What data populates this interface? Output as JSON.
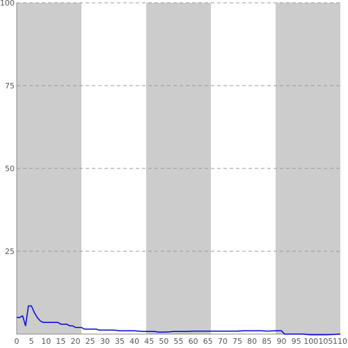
{
  "chart_data": {
    "type": "line",
    "title": "",
    "xlabel": "",
    "ylabel": "",
    "xlim": [
      0,
      110
    ],
    "ylim": [
      0,
      100
    ],
    "x_ticks": [
      0,
      5,
      10,
      15,
      20,
      25,
      30,
      35,
      40,
      45,
      50,
      55,
      60,
      65,
      70,
      75,
      80,
      85,
      90,
      95,
      100,
      105,
      110
    ],
    "y_ticks": [
      25,
      50,
      75,
      100
    ],
    "grid": "horizontal-dashed",
    "shaded_bands": [
      [
        0,
        22
      ],
      [
        44,
        66
      ],
      [
        88,
        110
      ]
    ],
    "colors": {
      "line": "#0000dd",
      "band": "#cccccc",
      "grid": "#999999",
      "axis": "#888888"
    },
    "series": [
      {
        "x": [
          0,
          1,
          2,
          3,
          4,
          5,
          6,
          7,
          8,
          9,
          10,
          12,
          14,
          15,
          16,
          17,
          18,
          19,
          20,
          21,
          22,
          23,
          25,
          27,
          28,
          30,
          33,
          35,
          38,
          40,
          43,
          45,
          47,
          48,
          50,
          52,
          53,
          55,
          58,
          60,
          62,
          65,
          67,
          70,
          72,
          75,
          77,
          78,
          80,
          83,
          85,
          88,
          90,
          91,
          93,
          95,
          97,
          100,
          103,
          105,
          108,
          110
        ],
        "y": [
          5,
          5,
          5.5,
          2.5,
          8.5,
          8.5,
          6.5,
          5,
          4,
          3.5,
          3.5,
          3.5,
          3.5,
          3,
          3,
          3,
          2.5,
          2.5,
          2,
          2,
          2,
          1.5,
          1.5,
          1.5,
          1.2,
          1.2,
          1.2,
          1,
          1,
          1,
          0.8,
          0.8,
          0.8,
          0.6,
          0.6,
          0.7,
          0.8,
          0.8,
          0.8,
          0.9,
          0.9,
          0.9,
          0.9,
          0.9,
          0.9,
          0.9,
          1,
          1,
          1,
          1,
          0.9,
          1,
          1,
          0,
          0,
          0,
          0,
          -0.2,
          -0.2,
          -0.2,
          -0.1,
          0
        ]
      }
    ]
  }
}
